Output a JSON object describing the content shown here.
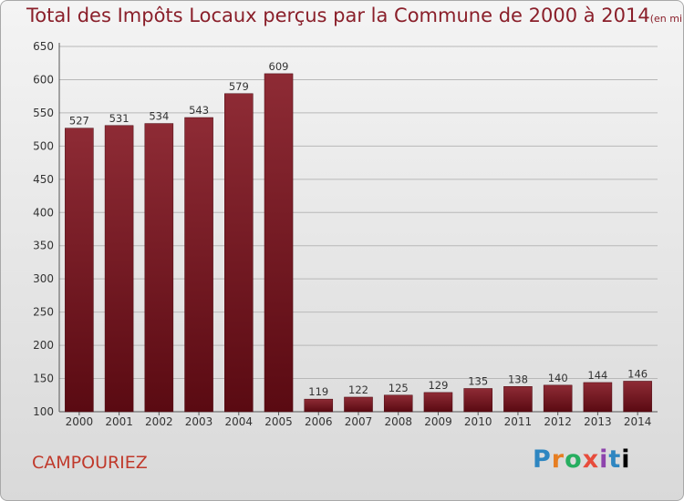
{
  "title": "Total des Impôts Locaux perçus par la Commune de 2000 à 2014",
  "unit": "(en milliers d'€)",
  "commune": "CAMPOURIEZ",
  "logo_text": "Proxiti",
  "colors": {
    "bar": "#7b1a24",
    "title": "#8a1f2a",
    "commune": "#c0392b"
  },
  "chart_data": {
    "type": "bar",
    "categories": [
      "2000",
      "2001",
      "2002",
      "2003",
      "2004",
      "2005",
      "2006",
      "2007",
      "2008",
      "2009",
      "2010",
      "2011",
      "2012",
      "2013",
      "2014"
    ],
    "values": [
      527,
      531,
      534,
      543,
      579,
      609,
      119,
      122,
      125,
      129,
      135,
      138,
      140,
      144,
      146
    ],
    "ylim": [
      100,
      650
    ],
    "yticks": [
      100,
      150,
      200,
      250,
      300,
      350,
      400,
      450,
      500,
      550,
      600,
      650
    ],
    "grid": "horizontal"
  }
}
